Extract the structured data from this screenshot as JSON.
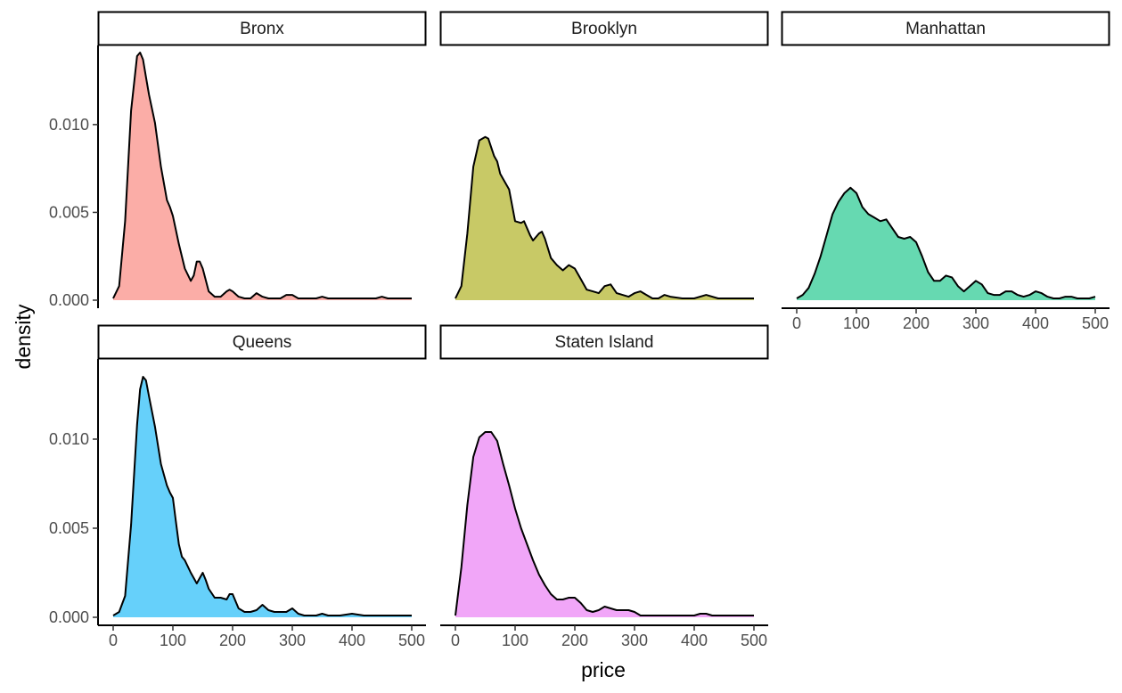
{
  "chart_data": {
    "type": "area",
    "xlabel": "price",
    "ylabel": "density",
    "xlim": [
      0,
      500
    ],
    "ylim": [
      0,
      0.014
    ],
    "x_ticks": [
      0,
      100,
      200,
      300,
      400,
      500
    ],
    "x_tick_labels": [
      "0",
      "100",
      "200",
      "300",
      "400",
      "500"
    ],
    "y_ticks": [
      0.0,
      0.005,
      0.01
    ],
    "y_tick_labels": [
      "0.000",
      "0.005",
      "0.010"
    ],
    "grid": false,
    "legend": "none",
    "panels": [
      {
        "name": "Bronx",
        "color": "#F8766D",
        "x": [
          0,
          10,
          20,
          30,
          40,
          45,
          50,
          55,
          60,
          70,
          80,
          90,
          95,
          100,
          110,
          120,
          130,
          135,
          140,
          145,
          150,
          160,
          170,
          180,
          190,
          195,
          200,
          210,
          220,
          230,
          240,
          250,
          260,
          270,
          280,
          290,
          300,
          310,
          320,
          340,
          350,
          360,
          380,
          400,
          410,
          420,
          440,
          450,
          460,
          470,
          480,
          500
        ],
        "y": [
          0.0001,
          0.0008,
          0.0045,
          0.0108,
          0.0139,
          0.0141,
          0.0137,
          0.0127,
          0.0117,
          0.0101,
          0.0076,
          0.0057,
          0.0053,
          0.0048,
          0.0032,
          0.0018,
          0.0011,
          0.0014,
          0.0022,
          0.0022,
          0.0018,
          0.0005,
          0.0002,
          0.0002,
          0.0005,
          0.0006,
          0.0005,
          0.0002,
          0.0001,
          0.0001,
          0.0004,
          0.0002,
          0.0001,
          0.0001,
          0.0001,
          0.0003,
          0.0003,
          0.0001,
          0.0001,
          0.0001,
          0.0002,
          0.0001,
          0.0001,
          0.0001,
          0.0001,
          0.0001,
          0.0001,
          0.0002,
          0.0001,
          0.0001,
          0.0001,
          0.0001
        ]
      },
      {
        "name": "Brooklyn",
        "color": "#A3A500",
        "x": [
          0,
          10,
          20,
          30,
          40,
          50,
          55,
          60,
          65,
          70,
          75,
          80,
          90,
          100,
          110,
          115,
          120,
          125,
          130,
          140,
          145,
          150,
          160,
          170,
          180,
          190,
          200,
          210,
          220,
          230,
          240,
          250,
          260,
          270,
          280,
          290,
          300,
          310,
          320,
          330,
          340,
          350,
          360,
          380,
          400,
          420,
          440,
          460,
          480,
          500
        ],
        "y": [
          0.0001,
          0.0008,
          0.0038,
          0.0076,
          0.0091,
          0.0093,
          0.0092,
          0.0087,
          0.0082,
          0.0079,
          0.0072,
          0.0069,
          0.0063,
          0.0045,
          0.0044,
          0.0045,
          0.0041,
          0.0037,
          0.0034,
          0.0038,
          0.0039,
          0.0035,
          0.0024,
          0.002,
          0.0017,
          0.002,
          0.0018,
          0.0012,
          0.0006,
          0.0005,
          0.0004,
          0.0008,
          0.0009,
          0.0004,
          0.0003,
          0.0002,
          0.0004,
          0.0005,
          0.0003,
          0.0001,
          0.0001,
          0.0003,
          0.0002,
          0.0001,
          0.0001,
          0.0003,
          0.0001,
          0.0001,
          0.0001,
          0.0001
        ]
      },
      {
        "name": "Manhattan",
        "color": "#00BF7D",
        "x": [
          0,
          10,
          20,
          30,
          40,
          50,
          60,
          70,
          80,
          90,
          100,
          110,
          120,
          130,
          140,
          150,
          160,
          170,
          180,
          190,
          200,
          210,
          220,
          230,
          240,
          250,
          260,
          270,
          280,
          290,
          300,
          310,
          320,
          330,
          340,
          350,
          360,
          370,
          380,
          390,
          400,
          410,
          420,
          430,
          440,
          450,
          460,
          470,
          480,
          490,
          500
        ],
        "y": [
          0.0001,
          0.0003,
          0.0007,
          0.0015,
          0.0025,
          0.0037,
          0.0049,
          0.0056,
          0.0061,
          0.0064,
          0.0061,
          0.0053,
          0.0049,
          0.0047,
          0.0045,
          0.0046,
          0.0041,
          0.0036,
          0.0035,
          0.0036,
          0.0033,
          0.0025,
          0.0016,
          0.0011,
          0.0011,
          0.0014,
          0.0013,
          0.0008,
          0.0005,
          0.0008,
          0.0011,
          0.0009,
          0.0004,
          0.0003,
          0.0003,
          0.0005,
          0.0005,
          0.0003,
          0.0002,
          0.0003,
          0.0005,
          0.0004,
          0.0002,
          0.0001,
          0.0001,
          0.0002,
          0.0002,
          0.0001,
          0.0001,
          0.0001,
          0.0002
        ]
      },
      {
        "name": "Queens",
        "color": "#00B0F6",
        "x": [
          0,
          10,
          20,
          30,
          40,
          45,
          50,
          55,
          60,
          70,
          80,
          90,
          95,
          100,
          105,
          110,
          115,
          120,
          130,
          140,
          145,
          150,
          155,
          160,
          170,
          180,
          190,
          195,
          200,
          210,
          220,
          230,
          240,
          250,
          260,
          270,
          280,
          290,
          300,
          310,
          320,
          340,
          350,
          360,
          380,
          400,
          420,
          440,
          460,
          480,
          500
        ],
        "y": [
          0.0001,
          0.0003,
          0.0012,
          0.0052,
          0.0108,
          0.0128,
          0.0135,
          0.0133,
          0.0124,
          0.0107,
          0.0086,
          0.0074,
          0.007,
          0.0067,
          0.0054,
          0.0041,
          0.0034,
          0.0032,
          0.0025,
          0.0019,
          0.0022,
          0.0025,
          0.0021,
          0.0016,
          0.0011,
          0.0011,
          0.001,
          0.0013,
          0.0013,
          0.0005,
          0.0003,
          0.0003,
          0.0004,
          0.0007,
          0.0004,
          0.0003,
          0.0003,
          0.0003,
          0.0005,
          0.0002,
          0.0001,
          0.0001,
          0.0002,
          0.0001,
          0.0001,
          0.0002,
          0.0001,
          0.0001,
          0.0001,
          0.0001,
          0.0001
        ]
      },
      {
        "name": "Staten Island",
        "color": "#E76BF3",
        "x": [
          0,
          10,
          20,
          30,
          40,
          50,
          60,
          70,
          80,
          90,
          100,
          110,
          120,
          130,
          140,
          150,
          160,
          170,
          180,
          190,
          200,
          210,
          220,
          230,
          240,
          250,
          260,
          270,
          280,
          290,
          300,
          310,
          320,
          340,
          360,
          380,
          400,
          410,
          420,
          430,
          440,
          460,
          480,
          500
        ],
        "y": [
          0.0001,
          0.0028,
          0.0063,
          0.009,
          0.0101,
          0.0104,
          0.0104,
          0.0099,
          0.0086,
          0.0074,
          0.0061,
          0.005,
          0.0041,
          0.0032,
          0.0024,
          0.0018,
          0.0013,
          0.001,
          0.001,
          0.0011,
          0.0011,
          0.0008,
          0.0004,
          0.0003,
          0.0004,
          0.0006,
          0.0005,
          0.0004,
          0.0004,
          0.0004,
          0.0003,
          0.0001,
          0.0001,
          0.0001,
          0.0001,
          0.0001,
          0.0001,
          0.0002,
          0.0002,
          0.0001,
          0.0001,
          0.0001,
          0.0001,
          0.0001
        ]
      }
    ]
  }
}
